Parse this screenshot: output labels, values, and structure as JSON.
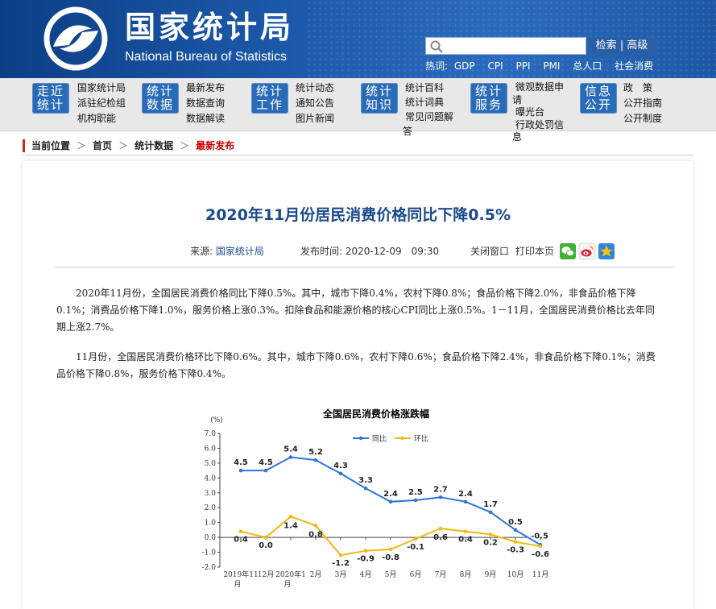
{
  "header": {
    "title_cn": "国家统计局",
    "title_en": "National Bureau of Statistics",
    "search": {
      "placeholder": "",
      "search_label": "检索",
      "advanced_label": "高级"
    },
    "hot": {
      "label": "热词:",
      "items": [
        "GDP",
        "CPI",
        "PPI",
        "PMI",
        "总人口",
        "社会消费"
      ]
    }
  },
  "nav": {
    "groups": [
      {
        "badge_l1": "走近",
        "badge_l2": "统计",
        "links": [
          "国家统计局",
          "派驻纪检组",
          "机构职能"
        ]
      },
      {
        "badge_l1": "统计",
        "badge_l2": "数据",
        "links": [
          "最新发布",
          "数据查询",
          "数据解读"
        ]
      },
      {
        "badge_l1": "统计",
        "badge_l2": "工作",
        "links": [
          "统计动态",
          "通知公告",
          "图片新闻"
        ]
      },
      {
        "badge_l1": "统计",
        "badge_l2": "知识",
        "links": [
          "统计百科",
          "统计词典",
          "常见问题解",
          "答"
        ]
      },
      {
        "badge_l1": "统计",
        "badge_l2": "服务",
        "links": [
          "微观数据申",
          "请",
          "曝光台",
          "行政处罚信",
          "息"
        ]
      },
      {
        "badge_l1": "信息",
        "badge_l2": "公开",
        "links": [
          "政　策",
          "公开指南",
          "公开制度"
        ]
      }
    ]
  },
  "breadcrumb": {
    "label": "当前位置",
    "items": [
      "首页",
      "统计数据"
    ],
    "current": "最新发布",
    "separator": "＞"
  },
  "article": {
    "title": "2020年11月份居民消费价格同比下降0.5%",
    "source_label": "来源:",
    "source": "国家统计局",
    "date_label": "发布时间:",
    "date": "2020-12-09　09:30",
    "close_label": "关闭窗口",
    "print_label": "打印本页",
    "share_icons": [
      "wechat-icon",
      "weibo-icon",
      "favorite-icon"
    ],
    "paragraphs": [
      "2020年11月份，全国居民消费价格同比下降0.5%。其中，城市下降0.4%，农村下降0.8%；食品价格下降2.0%，非食品价格下降0.1%；消费品价格下降1.0%，服务价格上涨0.3%。扣除食品和能源价格的核心CPI同比上涨0.5%。1－11月，全国居民消费价格比去年同期上涨2.7%。",
      "11月份，全国居民消费价格环比下降0.6%。其中，城市下降0.6%，农村下降0.6%；食品价格下降2.4%，非食品价格下降0.1%；消费品价格下降0.8%，服务价格下降0.4%。"
    ]
  },
  "chart_data": {
    "type": "line",
    "title": "全国居民消费价格涨跌幅",
    "ylabel": "(%)",
    "xlabel": "",
    "ylim": [
      -2.0,
      7.0
    ],
    "yticks": [
      "7.0",
      "6.0",
      "5.0",
      "4.0",
      "3.0",
      "2.0",
      "1.0",
      "0.0",
      "-1.0",
      "-2.0"
    ],
    "categories": [
      "2019年11月",
      "12月",
      "2020年1月",
      "2月",
      "3月",
      "4月",
      "5月",
      "6月",
      "7月",
      "8月",
      "9月",
      "10月",
      "11月"
    ],
    "legend_position": "top",
    "grid": false,
    "series": [
      {
        "name": "同比",
        "color": "#2e75d4",
        "values": [
          4.5,
          4.5,
          5.4,
          5.2,
          4.3,
          3.3,
          2.4,
          2.5,
          2.7,
          2.4,
          1.7,
          0.5,
          -0.5
        ],
        "labels": [
          "4.5",
          "4.5",
          "5.4",
          "5.2",
          "4.3",
          "3.3",
          "2.4",
          "2.5",
          "2.7",
          "2.4",
          "1.7",
          "0.5",
          "-0.5"
        ]
      },
      {
        "name": "环比",
        "color": "#f3b813",
        "values": [
          0.4,
          0.0,
          1.4,
          0.8,
          -1.2,
          -0.9,
          -0.8,
          -0.1,
          0.6,
          0.4,
          0.2,
          -0.3,
          -0.6
        ],
        "labels": [
          "0.4",
          "0.0",
          "1.4",
          "0.8",
          "-1.2",
          "-0.9",
          "-0.8",
          "-0.1",
          "0.6",
          "0.4",
          "0.2",
          "-0.3",
          "-0.6"
        ]
      }
    ]
  }
}
